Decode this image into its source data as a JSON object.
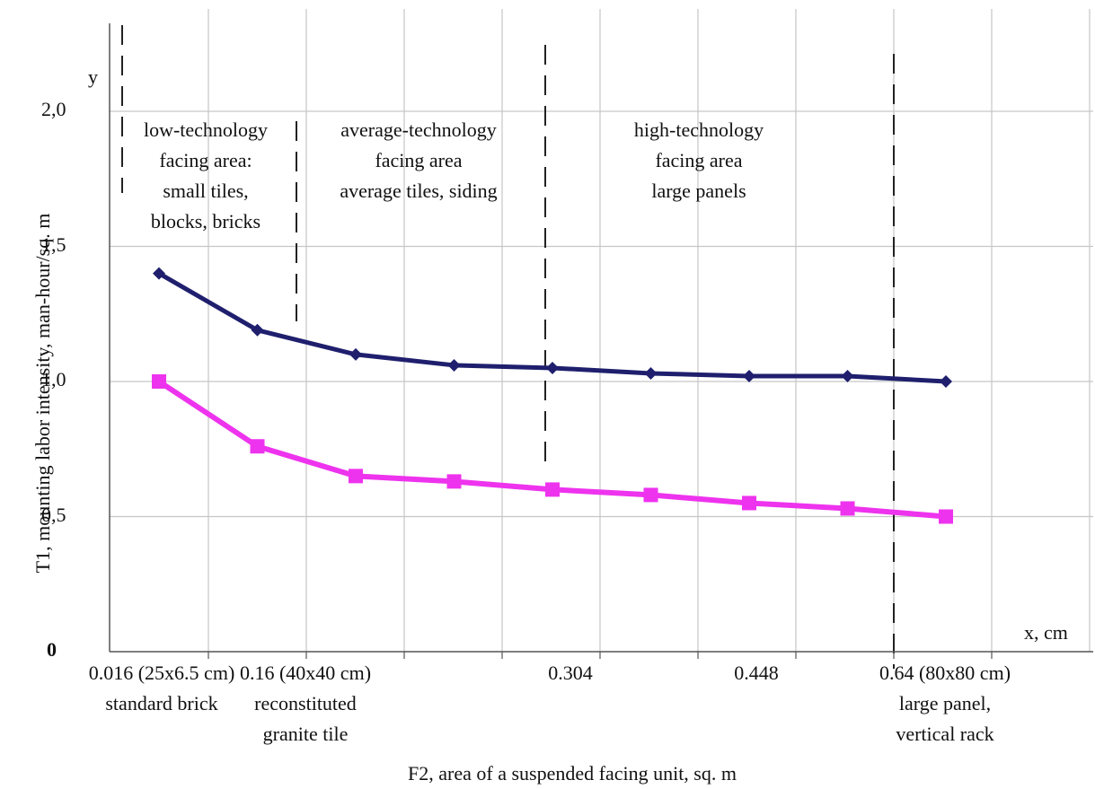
{
  "chart_data": {
    "type": "line",
    "xlabel": "F2, area of a suspended facing unit, sq. m",
    "ylabel": "T1, mounting labor intensity, man-hour/sq. m",
    "x_axis_name": "x, cm",
    "y_axis_name": "y",
    "ylim": [
      0,
      2.0
    ],
    "y_ticks": [
      "0",
      "0,5",
      "1,0",
      "1,5",
      "2,0"
    ],
    "y_tick_values": [
      0,
      0.5,
      1.0,
      1.5,
      2.0
    ],
    "x_ticks": [
      {
        "value": "0.016 (25x6.5 cm)",
        "desc": "standard brick"
      },
      {
        "value": "0.16 (40x40 cm)",
        "desc": "reconstituted\ngranite tile"
      },
      {
        "value": "0.304",
        "desc": ""
      },
      {
        "value": "0.448",
        "desc": ""
      },
      {
        "value": "0.64 (80x80 cm)",
        "desc": "large panel,\nvertical rack"
      }
    ],
    "x": [
      1,
      2,
      3,
      4,
      5,
      6,
      7,
      8,
      9
    ],
    "series": [
      {
        "marker": "diamond",
        "color": "#1f1f6e",
        "values": [
          1.4,
          1.19,
          1.1,
          1.06,
          1.05,
          1.03,
          1.02,
          1.02,
          1.0
        ]
      },
      {
        "marker": "square",
        "color": "#ee33ee",
        "values": [
          1.0,
          0.76,
          0.65,
          0.63,
          0.6,
          0.58,
          0.55,
          0.53,
          0.5
        ]
      }
    ],
    "zones": [
      {
        "label": "low-technology\nfacing area:\nsmall tiles,\nblocks, bricks"
      },
      {
        "label": "average-technology\nfacing area\naverage tiles, siding"
      },
      {
        "label": "high-technology\nfacing area\nlarge panels"
      }
    ],
    "grid": true
  }
}
